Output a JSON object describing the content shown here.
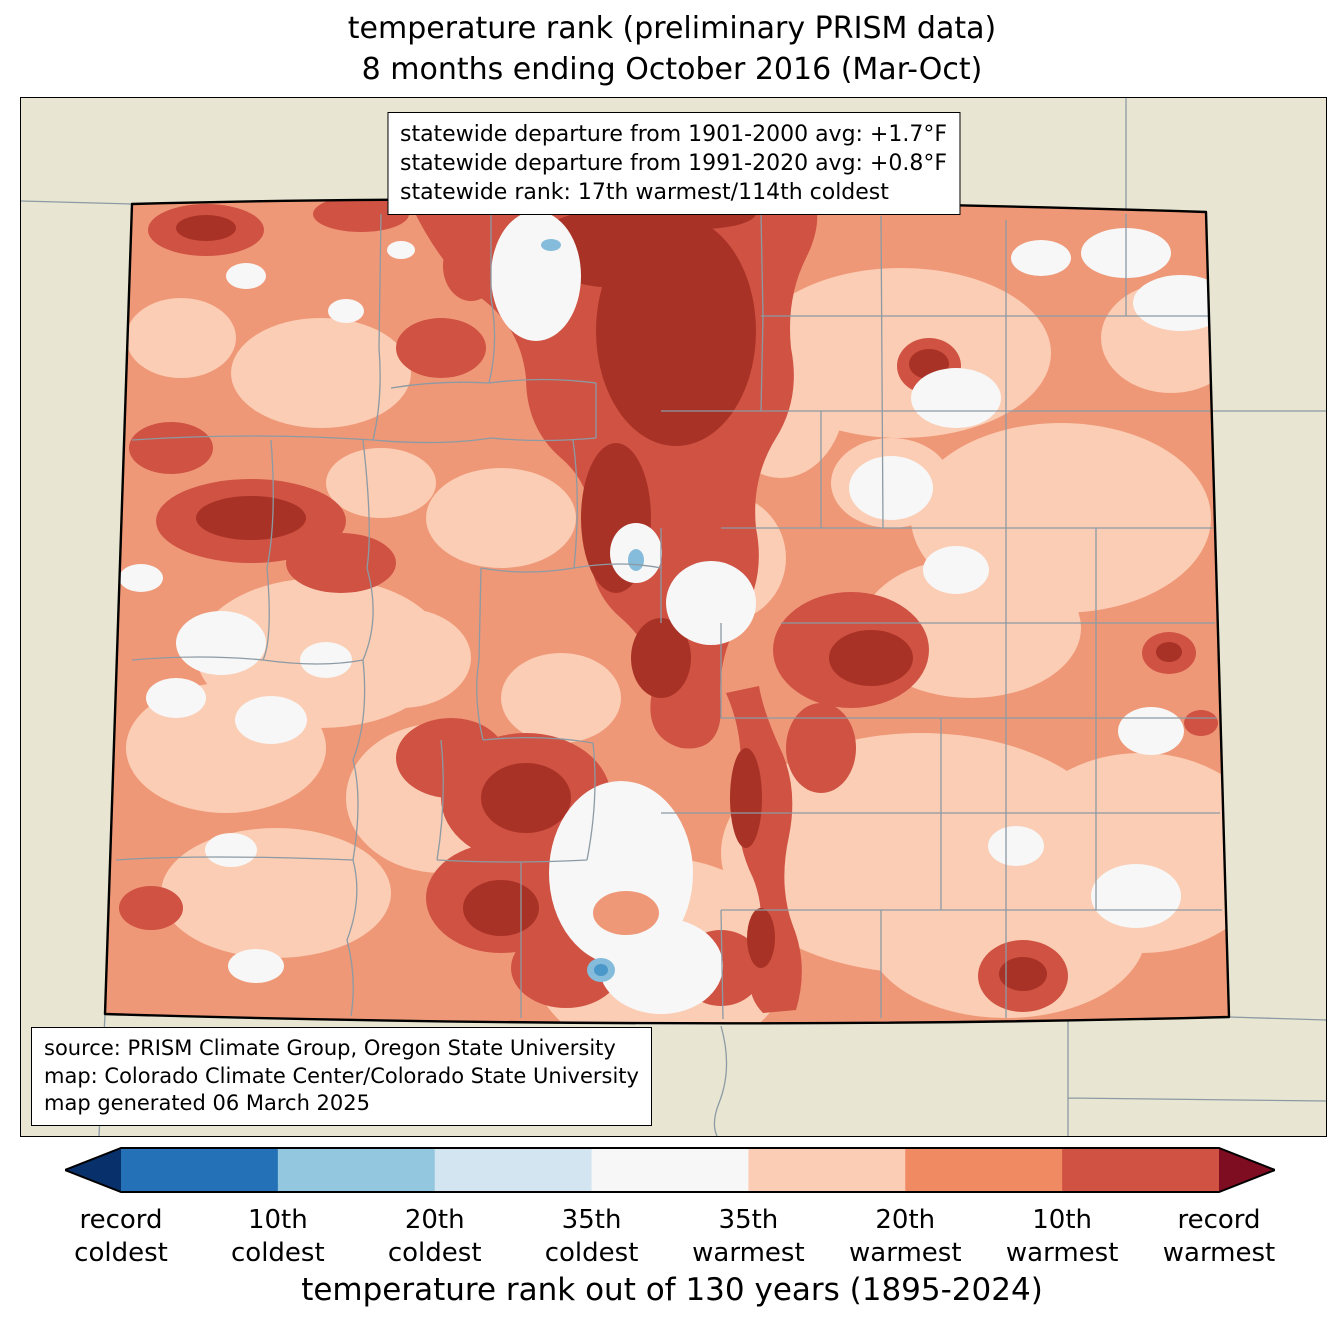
{
  "title": {
    "line1": "temperature rank (preliminary PRISM data)",
    "line2": "8 months ending October 2016 (Mar-Oct)"
  },
  "stats_box": {
    "lines": [
      "statewide departure from 1901-2000 avg: +1.7°F",
      "statewide departure from 1991-2020 avg: +0.8°F",
      "statewide rank: 17th warmest/114th coldest"
    ]
  },
  "source_box": {
    "lines": [
      "source: PRISM Climate Group, Oregon State University",
      "map: Colorado Climate Center/Colorado State University",
      "map generated 06 March 2025"
    ]
  },
  "caption": "temperature rank out of 130 years (1895-2024)",
  "colorbar": {
    "arrow_and_segment_colors": [
      "#08306b",
      "#2471b7",
      "#93c6df",
      "#d3e5f0",
      "#f7f7f7",
      "#fbcdb4",
      "#ef8a62",
      "#cf5243",
      "#7f0d22"
    ],
    "labels": [
      [
        "record",
        "coldest"
      ],
      [
        "10th",
        "coldest"
      ],
      [
        "20th",
        "coldest"
      ],
      [
        "35th",
        "coldest"
      ],
      [
        "35th",
        "warmest"
      ],
      [
        "20th",
        "warmest"
      ],
      [
        "10th",
        "warmest"
      ],
      [
        "record",
        "warmest"
      ]
    ]
  },
  "map": {
    "region": "Colorado",
    "palette": {
      "background": "#e8e6d2",
      "state_base": "#ef9877",
      "warm35": "#fbcdb4",
      "warm10": "#cf5243",
      "record_warm": "#a93226",
      "neutral": "#f7f7f7",
      "cold_spot": "#85bcdb",
      "cold_spot_core": "#4a97c9",
      "county_line": "#8c9aa4",
      "state_border": "#000000"
    }
  }
}
